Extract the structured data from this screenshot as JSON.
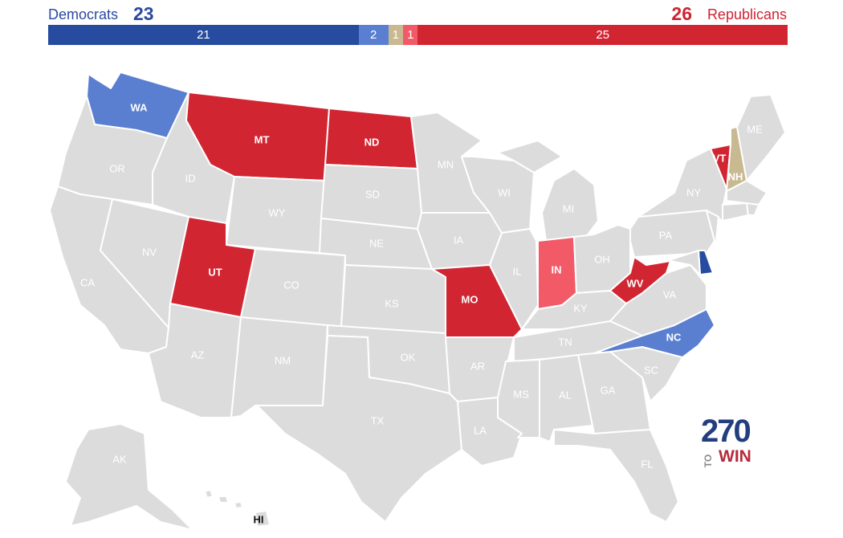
{
  "header": {
    "dem_label": "Democrats",
    "dem_total": "23",
    "rep_total": "26",
    "rep_label": "Republicans"
  },
  "bar": [
    {
      "value": 21,
      "label": "21",
      "color": "#274b9f"
    },
    {
      "value": 2,
      "label": "2",
      "color": "#5a7fd1"
    },
    {
      "value": 1,
      "label": "1",
      "color": "#c9b991"
    },
    {
      "value": 1,
      "label": "1",
      "color": "#f35a67"
    },
    {
      "value": 25,
      "label": "25",
      "color": "#d22532"
    }
  ],
  "colors": {
    "gray": "#dcdcdc",
    "safe_dem": "#274b9f",
    "likely_dem": "#5a7fd1",
    "tossup": "#c9b991",
    "likely_rep": "#f35a67",
    "safe_rep": "#d22532"
  },
  "states": {
    "WA": {
      "label": "WA",
      "rating": "likely_dem"
    },
    "OR": {
      "label": "OR",
      "rating": "none"
    },
    "CA": {
      "label": "CA",
      "rating": "none"
    },
    "NV": {
      "label": "NV",
      "rating": "none"
    },
    "ID": {
      "label": "ID",
      "rating": "none"
    },
    "MT": {
      "label": "MT",
      "rating": "safe_rep"
    },
    "WY": {
      "label": "WY",
      "rating": "none"
    },
    "UT": {
      "label": "UT",
      "rating": "safe_rep"
    },
    "AZ": {
      "label": "AZ",
      "rating": "none"
    },
    "CO": {
      "label": "CO",
      "rating": "none"
    },
    "NM": {
      "label": "NM",
      "rating": "none"
    },
    "ND": {
      "label": "ND",
      "rating": "safe_rep"
    },
    "SD": {
      "label": "SD",
      "rating": "none"
    },
    "NE": {
      "label": "NE",
      "rating": "none"
    },
    "KS": {
      "label": "KS",
      "rating": "none"
    },
    "OK": {
      "label": "OK",
      "rating": "none"
    },
    "TX": {
      "label": "TX",
      "rating": "none"
    },
    "MN": {
      "label": "MN",
      "rating": "none"
    },
    "IA": {
      "label": "IA",
      "rating": "none"
    },
    "MO": {
      "label": "MO",
      "rating": "safe_rep"
    },
    "AR": {
      "label": "AR",
      "rating": "none"
    },
    "LA": {
      "label": "LA",
      "rating": "none"
    },
    "WI": {
      "label": "WI",
      "rating": "none"
    },
    "IL": {
      "label": "IL",
      "rating": "none"
    },
    "MI": {
      "label": "MI",
      "rating": "none"
    },
    "IN": {
      "label": "IN",
      "rating": "likely_rep"
    },
    "OH": {
      "label": "OH",
      "rating": "none"
    },
    "KY": {
      "label": "KY",
      "rating": "none"
    },
    "TN": {
      "label": "TN",
      "rating": "none"
    },
    "MS": {
      "label": "MS",
      "rating": "none"
    },
    "AL": {
      "label": "AL",
      "rating": "none"
    },
    "GA": {
      "label": "GA",
      "rating": "none"
    },
    "FL": {
      "label": "FL",
      "rating": "none"
    },
    "SC": {
      "label": "SC",
      "rating": "none"
    },
    "NC": {
      "label": "NC",
      "rating": "likely_dem"
    },
    "VA": {
      "label": "VA",
      "rating": "none"
    },
    "WV": {
      "label": "WV",
      "rating": "safe_rep"
    },
    "PA": {
      "label": "PA",
      "rating": "none"
    },
    "NY": {
      "label": "NY",
      "rating": "none"
    },
    "VT": {
      "label": "VT",
      "rating": "safe_rep"
    },
    "NH": {
      "label": "NH",
      "rating": "tossup"
    },
    "ME": {
      "label": "ME",
      "rating": "none"
    },
    "DE": {
      "label": "DE",
      "rating": "safe_dem"
    },
    "AK": {
      "label": "AK",
      "rating": "none"
    },
    "HI": {
      "label": "HI",
      "rating": "none"
    }
  },
  "logo": {
    "number": "270",
    "to": "TO",
    "win": "WIN"
  }
}
